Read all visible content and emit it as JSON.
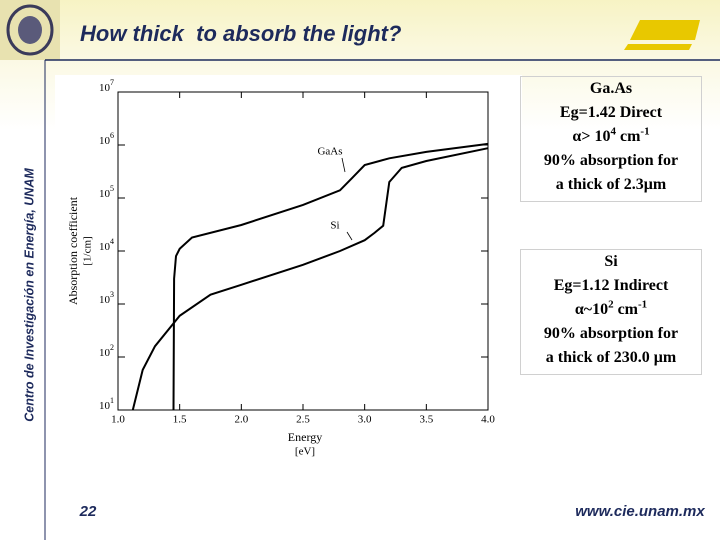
{
  "title": "How thick  to absorb the light?",
  "side_caption": "Centro de Investigación en Energía, UNAM",
  "page_number": "22",
  "footer_url": "www.cie.unam.mx",
  "boxes": [
    {
      "lines": [
        [
          {
            "t": "Ga.As"
          }
        ],
        [
          {
            "t": "Eg=1.42 Direct"
          }
        ],
        [
          {
            "t": "α> 10"
          },
          {
            "sup": "4"
          },
          {
            "t": " cm"
          },
          {
            "sup": "-1"
          }
        ],
        [
          {
            "t": "90% absorption for"
          }
        ],
        [
          {
            "t": "a thick of 2.3μm"
          }
        ]
      ]
    },
    {
      "lines": [
        [
          {
            "t": "Si"
          }
        ],
        [
          {
            "t": "Eg=1.12 Indirect"
          }
        ],
        [
          {
            "t": "α~10"
          },
          {
            "sup": "2"
          },
          {
            "t": " cm"
          },
          {
            "sup": "-1"
          }
        ],
        [
          {
            "t": "90% absorption for"
          }
        ],
        [
          {
            "t": "a thick of 230.0 μm"
          }
        ]
      ]
    }
  ],
  "chart_data": {
    "type": "line",
    "log_y": true,
    "x_label": "Energy",
    "x_unit": "[eV]",
    "y_label": "Absorption coefficient",
    "y_unit": "[1/cm]",
    "xlim": [
      1.0,
      4.0
    ],
    "ylim": [
      10,
      10000000
    ],
    "xticks": [
      {
        "value": 1.0,
        "label": "1.0"
      },
      {
        "value": 1.5,
        "label": "1.5"
      },
      {
        "value": 2.0,
        "label": "2.0"
      },
      {
        "value": 2.5,
        "label": "2.5"
      },
      {
        "value": 3.0,
        "label": "3.0"
      },
      {
        "value": 3.5,
        "label": "3.5"
      },
      {
        "value": 4.0,
        "label": "4.0"
      }
    ],
    "yticks": [
      {
        "value": 10,
        "label": "10",
        "exponent": "1"
      },
      {
        "value": 100,
        "label": "10",
        "exponent": "2"
      },
      {
        "value": 1000,
        "label": "10",
        "exponent": "3"
      },
      {
        "value": 10000,
        "label": "10",
        "exponent": "4"
      },
      {
        "value": 100000,
        "label": "10",
        "exponent": "5"
      },
      {
        "value": 1000000,
        "label": "10",
        "exponent": "6"
      },
      {
        "value": 10000000,
        "label": "10",
        "exponent": "7"
      }
    ],
    "series": [
      {
        "name": "GaAs",
        "color": "#000000",
        "x": [
          1.45,
          1.455,
          1.47,
          1.5,
          1.6,
          2.0,
          2.5,
          2.8,
          2.9,
          3.0,
          3.2,
          3.5,
          4.0
        ],
        "values": [
          10,
          3000,
          8000,
          11000,
          18000,
          31000,
          74000,
          140000,
          240000,
          420000,
          560000,
          740000,
          1050000
        ]
      },
      {
        "name": "Si",
        "color": "#000000",
        "x": [
          1.12,
          1.2,
          1.3,
          1.5,
          1.75,
          2.0,
          2.5,
          2.8,
          3.0,
          3.08,
          3.15,
          3.2,
          3.3,
          3.5,
          4.0
        ],
        "values": [
          10,
          57,
          160,
          600,
          1500,
          2300,
          5500,
          10000,
          16000,
          22000,
          30000,
          200000,
          370000,
          500000,
          870000
        ]
      }
    ],
    "annotations": [
      {
        "text": "GaAs",
        "series": 0
      },
      {
        "text": "Si",
        "series": 1
      }
    ]
  }
}
